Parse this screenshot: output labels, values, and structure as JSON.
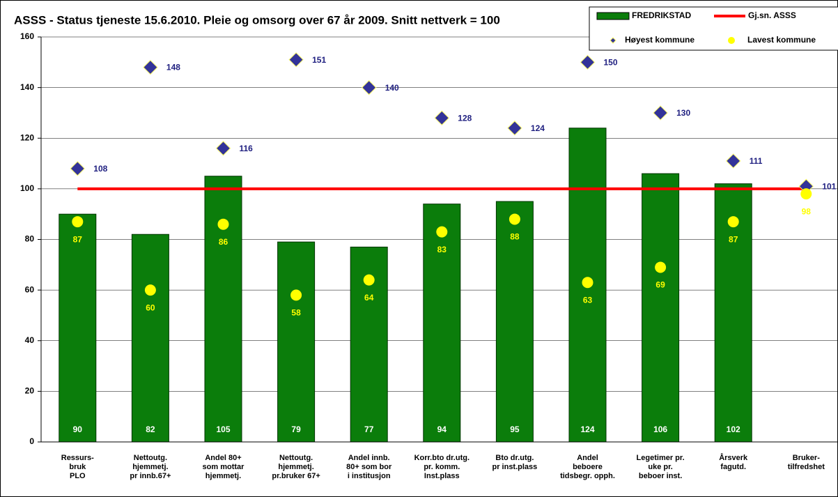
{
  "chart_data": {
    "type": "bar",
    "title": "ASSS - Status tjeneste 15.6.2010. Pleie og omsorg over 67 år 2009. Snitt nettverk = 100",
    "categories": [
      "Ressurs-\nbruk\nPLO",
      "Nettoutg.\nhjemmetj.\npr innb.67+",
      "Andel 80+\nsom mottar\nhjemmetj.",
      "Nettoutg.\nhjemmetj.\npr.bruker 67+",
      "Andel innb.\n80+ som bor\ni institusjon",
      "Korr.bto dr.utg.\npr. komm.\nInst.plass",
      "Bto dr.utg.\npr inst.plass",
      "Andel\nbeboere\ntidsbegr. opph.",
      "Legetimer pr.\nuke pr.\nbeboer inst.",
      "Årsverk\nfagutd.",
      "Bruker-\ntilfredshet"
    ],
    "series": [
      {
        "name": "FREDRIKSTAD",
        "type": "bar",
        "color": "#0b7d0b",
        "values": [
          90,
          82,
          105,
          79,
          77,
          94,
          95,
          124,
          106,
          102,
          null
        ]
      },
      {
        "name": "Gj.sn. ASSS",
        "type": "line",
        "color": "#ff0000",
        "values": [
          100,
          100,
          100,
          100,
          100,
          100,
          100,
          100,
          100,
          100,
          100
        ]
      },
      {
        "name": "Høyest kommune",
        "type": "scatter",
        "marker": "diamond",
        "color": "#333399",
        "values": [
          108,
          148,
          116,
          151,
          140,
          128,
          124,
          150,
          130,
          111,
          101
        ]
      },
      {
        "name": "Lavest kommune",
        "type": "scatter",
        "marker": "circle",
        "color": "#ffff00",
        "values": [
          87,
          60,
          86,
          58,
          64,
          83,
          88,
          63,
          69,
          87,
          98
        ]
      }
    ],
    "ylim": [
      0,
      160
    ],
    "yticks": [
      0,
      20,
      40,
      60,
      80,
      100,
      120,
      140,
      160
    ],
    "grid": true,
    "legend": "top-right"
  }
}
